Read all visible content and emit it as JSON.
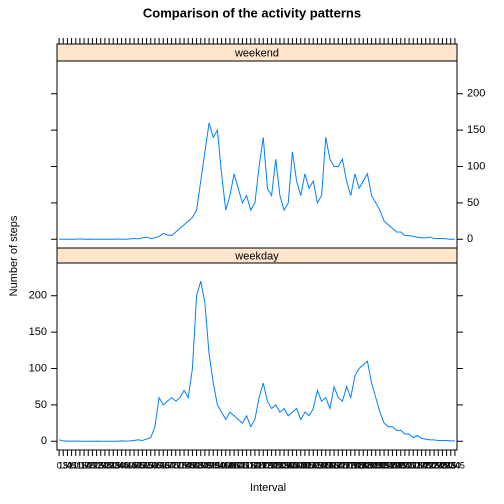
{
  "chart_data": {
    "type": "line",
    "title": "Comparison of the activity patterns",
    "x_label": "Interval",
    "y_label": "Number of steps",
    "categories": [
      "0",
      "15",
      "30",
      "45",
      "100",
      "115",
      "130",
      "145",
      "200",
      "215",
      "230",
      "245",
      "300",
      "315",
      "330",
      "345",
      "400",
      "415",
      "430",
      "445",
      "500",
      "515",
      "530",
      "545",
      "600",
      "615",
      "630",
      "645",
      "700",
      "715",
      "730",
      "745",
      "800",
      "815",
      "830",
      "845",
      "900",
      "915",
      "930",
      "945",
      "1000",
      "1015",
      "1030",
      "1045",
      "1100",
      "1115",
      "1130",
      "1145",
      "1200",
      "1215",
      "1230",
      "1245",
      "1300",
      "1315",
      "1330",
      "1345",
      "1400",
      "1415",
      "1430",
      "1445",
      "1500",
      "1515",
      "1530",
      "1545",
      "1600",
      "1615",
      "1630",
      "1645",
      "1700",
      "1715",
      "1730",
      "1745",
      "1800",
      "1815",
      "1830",
      "1845",
      "1900",
      "1915",
      "1930",
      "1945",
      "2000",
      "2015",
      "2030",
      "2045",
      "2100",
      "2115",
      "2130",
      "2145",
      "2200",
      "2215",
      "2230",
      "2245",
      "2300",
      "2315",
      "2330",
      "2345"
    ],
    "series": [
      {
        "name": "weekend",
        "color": "#0080ff",
        "values": [
          0.2,
          0.1,
          0,
          0,
          0,
          0.5,
          0,
          0.2,
          0,
          0,
          0,
          0,
          0,
          0,
          0.3,
          0,
          0,
          0.5,
          1,
          0.5,
          2,
          3,
          1,
          2,
          4,
          8,
          6,
          5,
          10,
          15,
          20,
          25,
          30,
          40,
          80,
          120,
          160,
          140,
          150,
          90,
          40,
          60,
          90,
          70,
          50,
          60,
          40,
          50,
          100,
          140,
          70,
          60,
          110,
          60,
          40,
          50,
          120,
          80,
          60,
          90,
          70,
          80,
          50,
          60,
          140,
          110,
          100,
          100,
          110,
          80,
          60,
          90,
          70,
          80,
          90,
          60,
          50,
          40,
          25,
          20,
          15,
          10,
          10,
          5,
          5,
          4,
          3,
          2,
          2,
          3,
          1,
          1,
          1,
          0.5,
          0,
          0
        ]
      },
      {
        "name": "weekday",
        "color": "#0080ff",
        "values": [
          2,
          0.5,
          0.2,
          0.2,
          0.4,
          0,
          0,
          0,
          0,
          0.2,
          0,
          0,
          0,
          0,
          0,
          0.5,
          0.2,
          0.5,
          1,
          2,
          1,
          3,
          5,
          20,
          60,
          50,
          55,
          60,
          55,
          60,
          70,
          60,
          100,
          200,
          220,
          190,
          120,
          80,
          50,
          40,
          30,
          40,
          35,
          30,
          25,
          35,
          20,
          30,
          60,
          80,
          55,
          45,
          50,
          40,
          45,
          35,
          40,
          45,
          30,
          40,
          35,
          45,
          70,
          55,
          60,
          45,
          75,
          60,
          55,
          75,
          60,
          90,
          100,
          105,
          110,
          80,
          60,
          40,
          25,
          20,
          20,
          15,
          15,
          10,
          10,
          5,
          8,
          4,
          3,
          2,
          2,
          1,
          1,
          1,
          0.5,
          0.5
        ]
      }
    ],
    "ylim": [
      -12,
      245
    ],
    "yticks": [
      0,
      50,
      100,
      150,
      200
    ],
    "strip_color": "#ffe5cc"
  }
}
